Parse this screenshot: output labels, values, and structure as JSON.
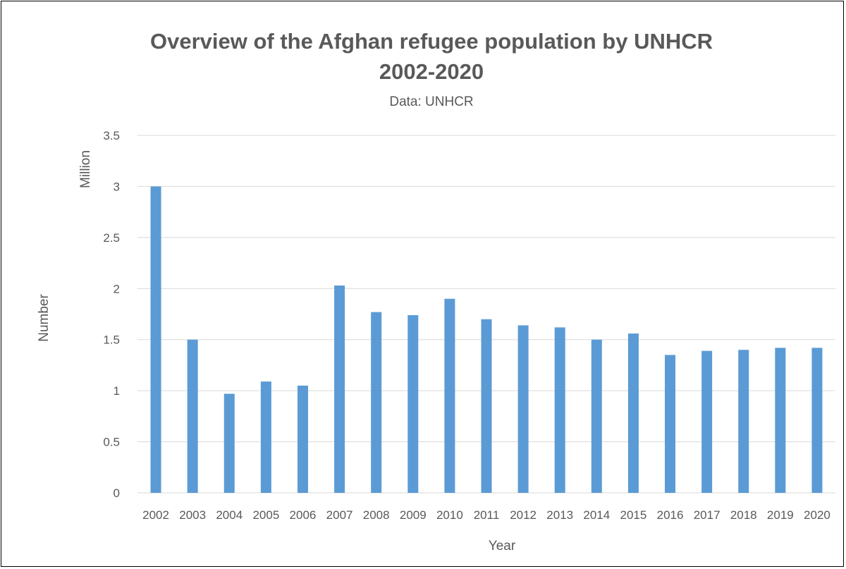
{
  "chart_data": {
    "type": "bar",
    "title": "Overview of the Afghan refugee population by UNHCR",
    "title_line2": "2002-2020",
    "subtitle": "Data: UNHCR",
    "xlabel": "Year",
    "ylabel": "Number",
    "yunit": "Million",
    "categories": [
      "2002",
      "2003",
      "2004",
      "2005",
      "2006",
      "2007",
      "2008",
      "2009",
      "2010",
      "2011",
      "2012",
      "2013",
      "2014",
      "2015",
      "2016",
      "2017",
      "2018",
      "2019",
      "2020"
    ],
    "values": [
      3.0,
      1.5,
      0.97,
      1.09,
      1.05,
      2.03,
      1.77,
      1.74,
      1.9,
      1.7,
      1.64,
      1.62,
      1.5,
      1.56,
      1.35,
      1.39,
      1.4,
      1.42,
      1.42
    ],
    "ylim": [
      0,
      3.5
    ],
    "yticks": [
      "0",
      "0.5",
      "1",
      "1.5",
      "2",
      "2.5",
      "3",
      "3.5"
    ],
    "ytick_values": [
      0,
      0.5,
      1,
      1.5,
      2,
      2.5,
      3,
      3.5
    ],
    "grid": true,
    "legend": "none",
    "bar_color": "#5b9bd5",
    "grid_color": "#d9d9d9",
    "text_color": "#595959"
  }
}
